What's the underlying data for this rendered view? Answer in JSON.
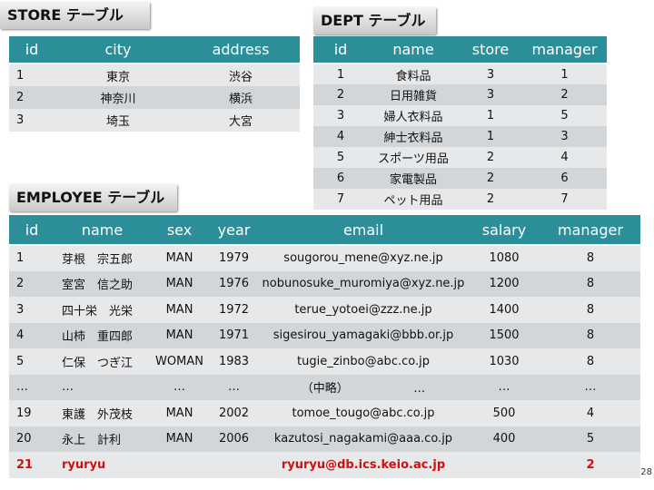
{
  "store": {
    "label": "STORE テーブル",
    "columns": [
      "id",
      "city",
      "address"
    ],
    "rows": [
      [
        "1",
        "東京",
        "渋谷"
      ],
      [
        "2",
        "神奈川",
        "横浜"
      ],
      [
        "3",
        "埼玉",
        "大宮"
      ]
    ]
  },
  "dept": {
    "label": "DEPT テーブル",
    "columns": [
      "id",
      "name",
      "store",
      "manager"
    ],
    "rows": [
      [
        "1",
        "食料品",
        "3",
        "1"
      ],
      [
        "2",
        "日用雑貨",
        "3",
        "2"
      ],
      [
        "3",
        "婦人衣料品",
        "1",
        "5"
      ],
      [
        "4",
        "紳士衣料品",
        "1",
        "3"
      ],
      [
        "5",
        "スポーツ用品",
        "2",
        "4"
      ],
      [
        "6",
        "家電製品",
        "2",
        "6"
      ],
      [
        "7",
        "ペット用品",
        "2",
        "7"
      ]
    ]
  },
  "employee": {
    "label": "EMPLOYEE テーブル",
    "columns": [
      "id",
      "name",
      "sex",
      "year",
      "email",
      "salary",
      "manager"
    ],
    "rows": [
      [
        "1",
        "芽根　宗五郎",
        "MAN",
        "1979",
        "sougorou_mene@xyz.ne.jp",
        "1080",
        "8"
      ],
      [
        "2",
        "室宮　信之助",
        "MAN",
        "1976",
        "nobunosuke_muromiya@xyz.ne.jp",
        "1200",
        "8"
      ],
      [
        "3",
        "四十栄　光栄",
        "MAN",
        "1972",
        "terue_yotoei@zzz.ne.jp",
        "1400",
        "8"
      ],
      [
        "4",
        "山柿　重四郎",
        "MAN",
        "1971",
        "sigesirou_yamagaki@bbb.or.jp",
        "1500",
        "8"
      ],
      [
        "5",
        "仁保　つぎ江",
        "WOMAN",
        "1983",
        "tugie_zinbo@abc.co.jp",
        "1030",
        "8"
      ],
      [
        "…",
        "…",
        "…",
        "…",
        "（中略）　　　　　　…",
        "…",
        "…"
      ],
      [
        "19",
        "東護　外茂枝",
        "MAN",
        "2002",
        "tomoe_tougo@abc.co.jp",
        "500",
        "4"
      ],
      [
        "20",
        "永上　計利",
        "MAN",
        "2006",
        "kazutosi_nagakami@aaa.co.jp",
        "400",
        "5"
      ],
      [
        "21",
        "ryuryu",
        "",
        "",
        "ryuryu@db.ics.keio.ac.jp",
        "",
        "2"
      ]
    ]
  },
  "page_number": "28"
}
